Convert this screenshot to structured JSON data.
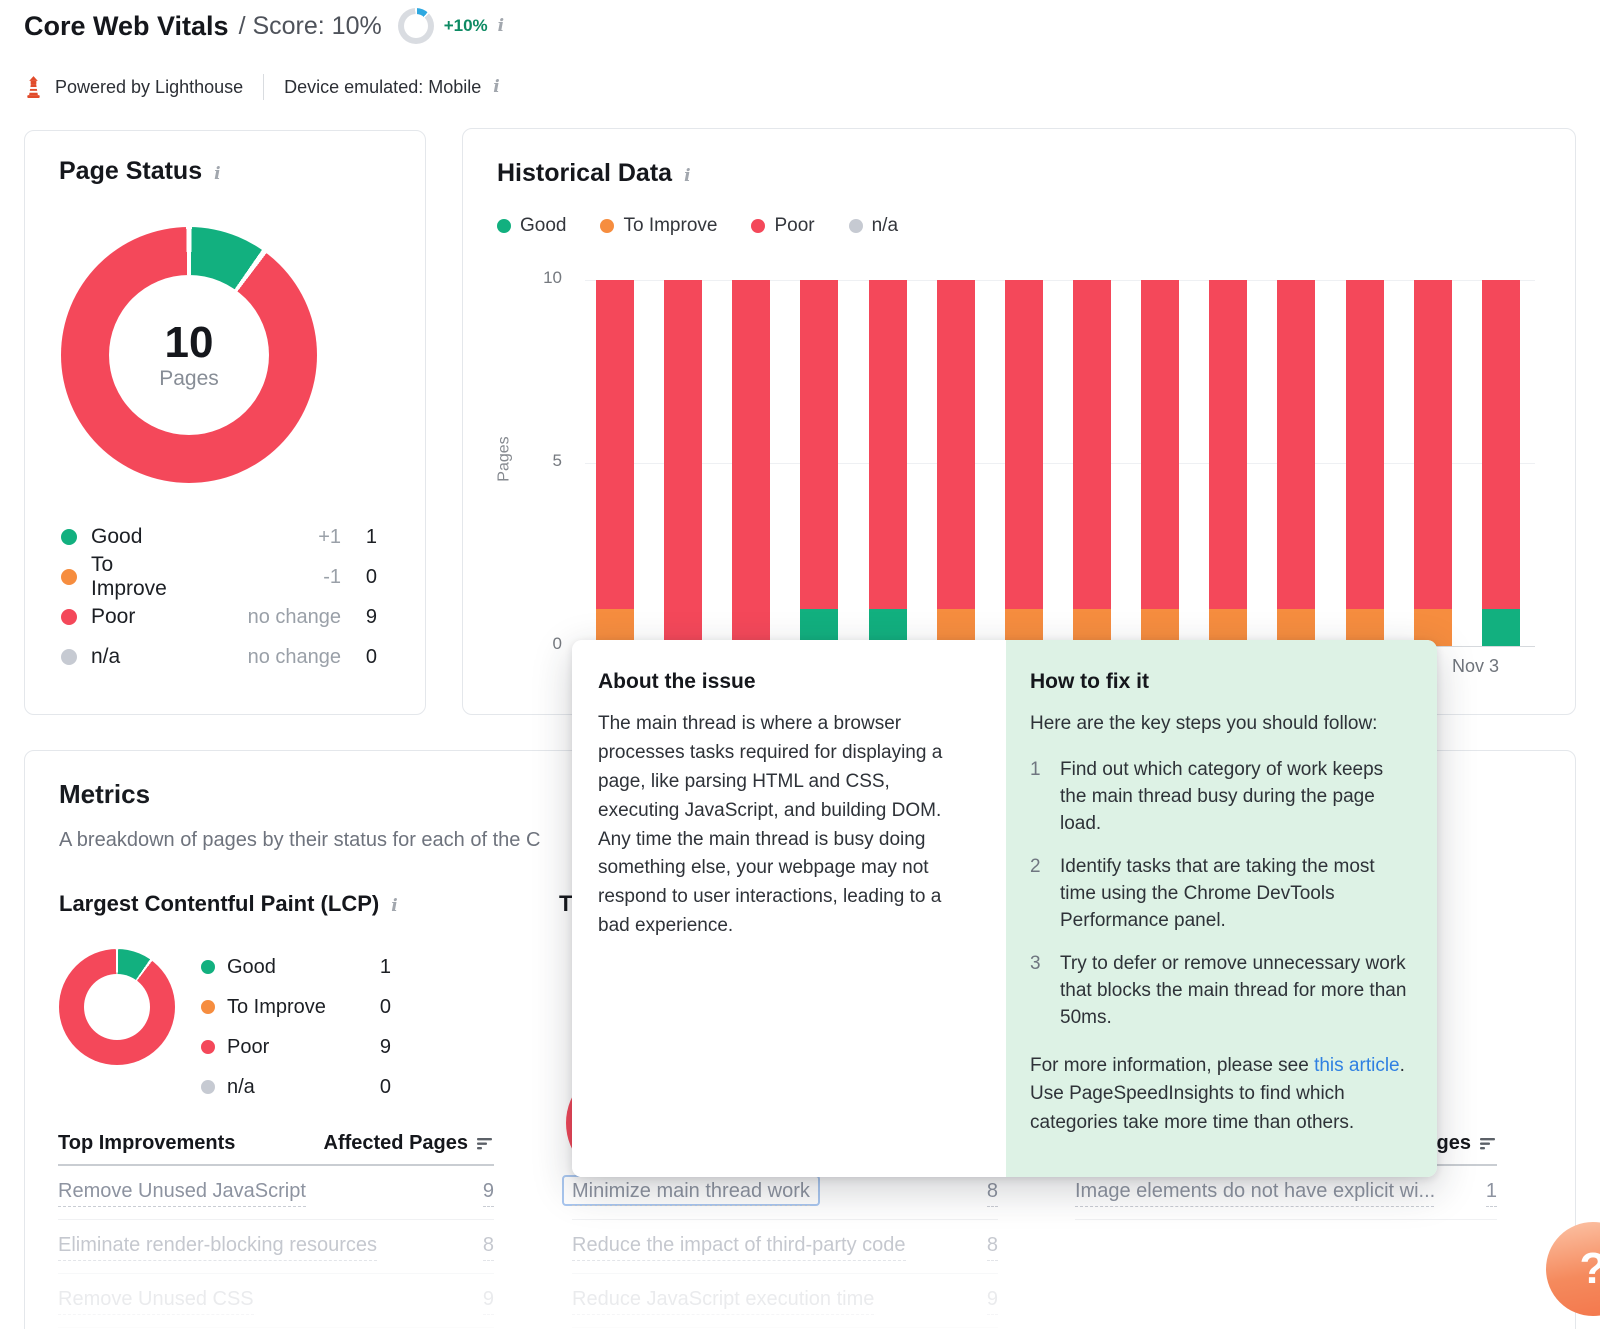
{
  "header": {
    "title": "Core Web Vitals",
    "score_label": "/ Score: 10%",
    "score_delta": "+10%",
    "powered_by": "Powered by Lighthouse",
    "device": "Device emulated: Mobile",
    "info_glyph": "i"
  },
  "colors": {
    "good": "#12b07f",
    "improve": "#f68d3f",
    "poor": "#f4485a",
    "na": "#c6cad2",
    "ring_blue": "#2ea8e0",
    "ring_gray": "#d9dce1",
    "delta_green": "#0d8a63",
    "link_blue": "#2f80e2"
  },
  "page_status": {
    "title": "Page Status",
    "total": "10",
    "total_label": "Pages",
    "legend": [
      {
        "label": "Good",
        "change": "+1",
        "value": "1",
        "color_key": "good"
      },
      {
        "label": "To Improve",
        "change": "-1",
        "value": "0",
        "color_key": "improve"
      },
      {
        "label": "Poor",
        "change": "no change",
        "value": "9",
        "color_key": "poor"
      },
      {
        "label": "n/a",
        "change": "no change",
        "value": "0",
        "color_key": "na"
      }
    ]
  },
  "historical": {
    "title": "Historical Data",
    "legend": [
      {
        "label": "Good",
        "color_key": "good"
      },
      {
        "label": "To Improve",
        "color_key": "improve"
      },
      {
        "label": "Poor",
        "color_key": "poor"
      },
      {
        "label": "n/a",
        "color_key": "na"
      }
    ],
    "yticks": [
      "10",
      "5",
      "0"
    ],
    "ylabel": "Pages",
    "visible_x_label": "Nov 3"
  },
  "chart_data": [
    {
      "id": "page-status-donut",
      "type": "pie",
      "title": "Page Status",
      "center_value": 10,
      "center_label": "Pages",
      "labels": [
        "Good",
        "To Improve",
        "Poor",
        "n/a"
      ],
      "values": [
        1,
        0,
        9,
        0
      ],
      "color_keys": [
        "good",
        "improve",
        "poor",
        "na"
      ]
    },
    {
      "id": "historical-stacked-bars",
      "type": "bar",
      "stacked": true,
      "title": "Historical Data",
      "xlabel": "",
      "ylabel": "Pages",
      "ylim": [
        0,
        10
      ],
      "yticks": [
        0,
        5,
        10
      ],
      "categories": [
        "",
        "",
        "",
        "",
        "",
        "",
        "",
        "",
        "",
        "",
        "",
        "",
        "",
        "Nov 3"
      ],
      "series": [
        {
          "name": "Good",
          "color_key": "good",
          "values": [
            0,
            0,
            0,
            1,
            1,
            0,
            0,
            0,
            0,
            0,
            0,
            0,
            0,
            1
          ]
        },
        {
          "name": "To Improve",
          "color_key": "improve",
          "values": [
            1,
            0,
            0,
            0,
            0,
            1,
            1,
            1,
            1,
            1,
            1,
            1,
            1,
            0
          ]
        },
        {
          "name": "Poor",
          "color_key": "poor",
          "values": [
            9,
            10,
            10,
            9,
            9,
            9,
            9,
            9,
            9,
            9,
            9,
            9,
            9,
            9
          ]
        },
        {
          "name": "n/a",
          "color_key": "na",
          "values": [
            0,
            0,
            0,
            0,
            0,
            0,
            0,
            0,
            0,
            0,
            0,
            0,
            0,
            0
          ]
        }
      ],
      "legend_position": "top"
    },
    {
      "id": "lcp-donut",
      "type": "pie",
      "title": "Largest Contentful Paint (LCP)",
      "labels": [
        "Good",
        "To Improve",
        "Poor",
        "n/a"
      ],
      "values": [
        1,
        0,
        9,
        0
      ],
      "color_keys": [
        "good",
        "improve",
        "poor",
        "na"
      ]
    }
  ],
  "metrics": {
    "title": "Metrics",
    "subtitle": "A breakdown of pages by their status for each of the C",
    "lcp": {
      "title": "Largest Contentful Paint (LCP)",
      "legend": [
        {
          "label": "Good",
          "value": "1",
          "color_key": "good"
        },
        {
          "label": "To Improve",
          "value": "0",
          "color_key": "improve"
        },
        {
          "label": "Poor",
          "value": "9",
          "color_key": "poor"
        },
        {
          "label": "n/a",
          "value": "0",
          "color_key": "na"
        }
      ]
    },
    "second_metric_partial": "T",
    "table_headers": {
      "improvements": "Top Improvements",
      "pages": "Affected Pages"
    },
    "columns": [
      {
        "show_header": true,
        "rows": [
          {
            "label": "Remove Unused JavaScript",
            "value": "9",
            "fade": 1
          },
          {
            "label": "Eliminate render-blocking resources",
            "value": "8",
            "fade": 2
          },
          {
            "label": "Remove Unused CSS",
            "value": "9",
            "fade": 3
          }
        ]
      },
      {
        "show_header": false,
        "rows": [
          {
            "label": "Minimize main thread work",
            "value": "8",
            "fade": 1,
            "focused": true
          },
          {
            "label": "Reduce the impact of third-party code",
            "value": "8",
            "fade": 2
          },
          {
            "label": "Reduce JavaScript execution time",
            "value": "9",
            "fade": 3
          }
        ]
      },
      {
        "show_header": true,
        "header_right_only": true,
        "rows": [
          {
            "label": "Image elements do not have explicit wi...",
            "value": "1",
            "fade": 1
          }
        ]
      }
    ]
  },
  "tooltip": {
    "about_title": "About the issue",
    "about_body": "The main thread is where a browser processes tasks required for displaying a page, like parsing HTML and CSS, executing JavaScript, and building DOM. Any time the main thread is busy doing something else, your webpage may not respond to user interactions, leading to a bad experience.",
    "fix_title": "How to fix it",
    "fix_intro": "Here are the key steps you should follow:",
    "fix_panel_bg": "#ddf2e5",
    "steps": [
      "Find out which category of work keeps the main thread busy during the page load.",
      "Identify tasks that are taking the most time using the Chrome DevTools Performance panel.",
      "Try to defer or remove unnecessary work that blocks the main thread for more than 50ms."
    ],
    "more_pre": "For more information, please see ",
    "more_link": "this article",
    "more_post": ". Use PageSpeedInsights to find which categories take more time than others."
  },
  "help": {
    "label": "?"
  }
}
